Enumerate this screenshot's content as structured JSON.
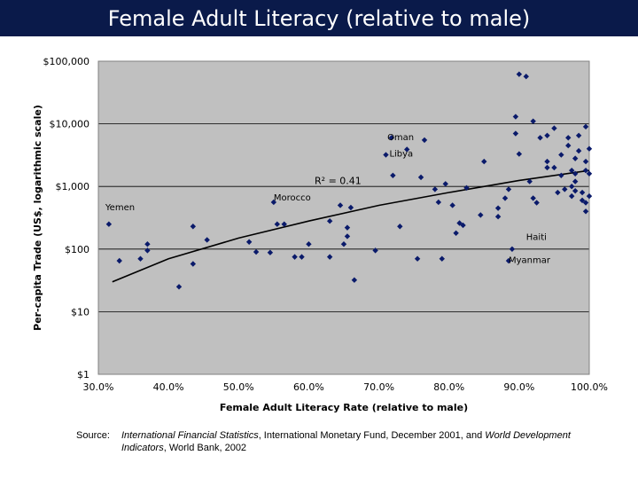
{
  "header": {
    "title": "Female Adult Literacy (relative to male)"
  },
  "source": {
    "label": "Source:",
    "part1": "International Financial Statistics",
    "part2": ", International Monetary Fund, December 2001, and ",
    "part3": "World Development Indicators",
    "part4": ", World Bank, 2002"
  },
  "chart_data": {
    "type": "scatter",
    "xlabel": "Female Adult Literacy Rate (relative to male)",
    "ylabel": "Per-capita Trade (US$, logarithmic scale)",
    "x_ticks": [
      "30.0%",
      "40.0%",
      "50.0%",
      "60.0%",
      "70.0%",
      "80.0%",
      "90.0%",
      "100.0%"
    ],
    "y_ticks": [
      "$1",
      "$10",
      "$100",
      "$1,000",
      "$10,000",
      "$100,000"
    ],
    "xlim": [
      30,
      100
    ],
    "ylim": [
      1,
      100000
    ],
    "y_scale": "log",
    "grid": "horizontal",
    "plot_background": "#c0c0c0",
    "marker_color": "#0a1a6a",
    "trendline": {
      "type": "logarithmic",
      "r_squared_label": "R² = 0.41",
      "points": [
        [
          32,
          30
        ],
        [
          40,
          70
        ],
        [
          50,
          150
        ],
        [
          60,
          280
        ],
        [
          70,
          500
        ],
        [
          80,
          800
        ],
        [
          90,
          1250
        ],
        [
          100,
          1800
        ]
      ]
    },
    "annotations": [
      {
        "text": "Oman",
        "x": 71.2,
        "y": 5500
      },
      {
        "text": "Libya",
        "x": 71.5,
        "y": 3000
      },
      {
        "text": "Morocco",
        "x": 55.0,
        "y": 600
      },
      {
        "text": "Yemen",
        "x": 31.0,
        "y": 420
      },
      {
        "text": "Haiti",
        "x": 91.0,
        "y": 140
      },
      {
        "text": "Myanmar",
        "x": 88.5,
        "y": 60
      }
    ],
    "points": [
      {
        "x": 31.5,
        "y": 250
      },
      {
        "x": 33.0,
        "y": 65
      },
      {
        "x": 36.0,
        "y": 70
      },
      {
        "x": 37.0,
        "y": 120
      },
      {
        "x": 37.0,
        "y": 95
      },
      {
        "x": 41.5,
        "y": 25
      },
      {
        "x": 43.5,
        "y": 230
      },
      {
        "x": 43.5,
        "y": 58
      },
      {
        "x": 45.5,
        "y": 140
      },
      {
        "x": 51.5,
        "y": 130
      },
      {
        "x": 52.5,
        "y": 90
      },
      {
        "x": 54.5,
        "y": 88
      },
      {
        "x": 55.0,
        "y": 560
      },
      {
        "x": 55.5,
        "y": 250
      },
      {
        "x": 56.5,
        "y": 250
      },
      {
        "x": 58.0,
        "y": 75
      },
      {
        "x": 59.0,
        "y": 75
      },
      {
        "x": 60.0,
        "y": 120
      },
      {
        "x": 63.0,
        "y": 280
      },
      {
        "x": 63.0,
        "y": 75
      },
      {
        "x": 64.5,
        "y": 500
      },
      {
        "x": 65.0,
        "y": 120
      },
      {
        "x": 65.5,
        "y": 220
      },
      {
        "x": 65.5,
        "y": 160
      },
      {
        "x": 66.0,
        "y": 460
      },
      {
        "x": 66.5,
        "y": 32
      },
      {
        "x": 69.5,
        "y": 95
      },
      {
        "x": 71.0,
        "y": 3200
      },
      {
        "x": 71.8,
        "y": 6000
      },
      {
        "x": 72.0,
        "y": 1500
      },
      {
        "x": 73.0,
        "y": 230
      },
      {
        "x": 74.0,
        "y": 3900
      },
      {
        "x": 75.5,
        "y": 70
      },
      {
        "x": 76.0,
        "y": 1400
      },
      {
        "x": 76.5,
        "y": 5500
      },
      {
        "x": 78.0,
        "y": 900
      },
      {
        "x": 78.5,
        "y": 560
      },
      {
        "x": 79.0,
        "y": 70
      },
      {
        "x": 79.5,
        "y": 1100
      },
      {
        "x": 80.5,
        "y": 500
      },
      {
        "x": 81.0,
        "y": 180
      },
      {
        "x": 81.5,
        "y": 260
      },
      {
        "x": 82.0,
        "y": 240
      },
      {
        "x": 82.5,
        "y": 950
      },
      {
        "x": 84.5,
        "y": 350
      },
      {
        "x": 85.0,
        "y": 2500
      },
      {
        "x": 87.0,
        "y": 330
      },
      {
        "x": 87.0,
        "y": 450
      },
      {
        "x": 88.0,
        "y": 650
      },
      {
        "x": 88.5,
        "y": 900
      },
      {
        "x": 88.5,
        "y": 65
      },
      {
        "x": 89.0,
        "y": 100
      },
      {
        "x": 89.5,
        "y": 13000
      },
      {
        "x": 89.5,
        "y": 7000
      },
      {
        "x": 90.0,
        "y": 3300
      },
      {
        "x": 90.0,
        "y": 62000
      },
      {
        "x": 91.0,
        "y": 57000
      },
      {
        "x": 91.5,
        "y": 1200
      },
      {
        "x": 92.0,
        "y": 650
      },
      {
        "x": 92.5,
        "y": 550
      },
      {
        "x": 92.0,
        "y": 11000
      },
      {
        "x": 93.0,
        "y": 6000
      },
      {
        "x": 94.0,
        "y": 6500
      },
      {
        "x": 94.0,
        "y": 2500
      },
      {
        "x": 94.0,
        "y": 2000
      },
      {
        "x": 95.0,
        "y": 8500
      },
      {
        "x": 95.0,
        "y": 2000
      },
      {
        "x": 95.5,
        "y": 800
      },
      {
        "x": 96.0,
        "y": 3200
      },
      {
        "x": 96.0,
        "y": 1500
      },
      {
        "x": 96.5,
        "y": 900
      },
      {
        "x": 97.0,
        "y": 6000
      },
      {
        "x": 97.0,
        "y": 4500
      },
      {
        "x": 97.5,
        "y": 1800
      },
      {
        "x": 97.5,
        "y": 1000
      },
      {
        "x": 97.5,
        "y": 700
      },
      {
        "x": 98.0,
        "y": 2800
      },
      {
        "x": 98.0,
        "y": 1600
      },
      {
        "x": 98.0,
        "y": 1200
      },
      {
        "x": 98.0,
        "y": 850
      },
      {
        "x": 98.5,
        "y": 6500
      },
      {
        "x": 98.5,
        "y": 3700
      },
      {
        "x": 99.0,
        "y": 800
      },
      {
        "x": 99.0,
        "y": 600
      },
      {
        "x": 99.5,
        "y": 9000
      },
      {
        "x": 99.5,
        "y": 2500
      },
      {
        "x": 99.5,
        "y": 1800
      },
      {
        "x": 99.5,
        "y": 550
      },
      {
        "x": 99.5,
        "y": 400
      },
      {
        "x": 100.0,
        "y": 4000
      },
      {
        "x": 100.0,
        "y": 1600
      },
      {
        "x": 100.0,
        "y": 700
      }
    ]
  }
}
